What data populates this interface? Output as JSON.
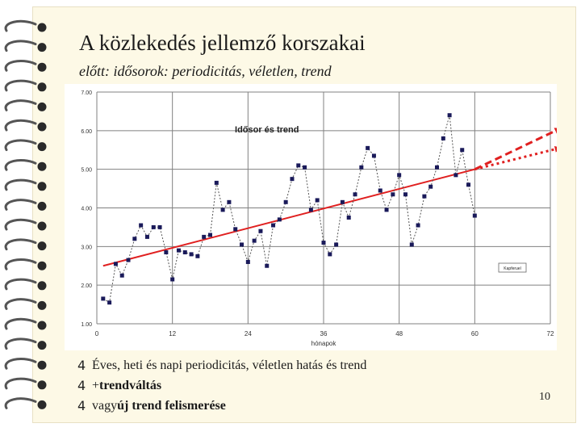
{
  "slide": {
    "title": "A közlekedés jellemző korszakai",
    "subtitle": "előtt: idősorok: periodicitás, véletlen, trend",
    "page_number": "10",
    "bullet_marker": "4",
    "bullets": [
      {
        "plain": "Éves, heti és napi periodicitás, véletlen hatás és trend",
        "bold": ""
      },
      {
        "plain": "+ ",
        "bold": "trendváltás"
      },
      {
        "plain": "vagy ",
        "bold": "új trend felismerése"
      }
    ]
  },
  "chart_data": {
    "type": "line",
    "title": "Idősor és trend",
    "xlabel": "hónapok",
    "ylabel": "",
    "legend_label": "Kapferuel",
    "xlim": [
      0,
      72
    ],
    "ylim": [
      1.0,
      7.0
    ],
    "x_ticks": [
      "0",
      "12",
      "24",
      "36",
      "48",
      "60",
      "72"
    ],
    "y_ticks": [
      "1.00",
      "2.00",
      "3.00",
      "4.00",
      "5.00",
      "6.00",
      "7.00"
    ],
    "grid": true,
    "colors": {
      "series": "#1a1a5a",
      "trend": "#e02020",
      "grid": "#808080"
    },
    "series": [
      {
        "x": [
          1,
          2,
          3,
          4,
          5,
          6,
          7,
          8,
          9,
          10,
          11,
          12,
          13,
          14,
          15,
          16,
          17,
          18,
          19,
          20,
          21,
          22,
          23,
          24,
          25,
          26,
          27,
          28,
          29,
          30,
          31,
          32,
          33,
          34,
          35,
          36,
          37,
          38,
          39,
          40,
          41,
          42,
          43,
          44,
          45,
          46,
          47,
          48,
          49,
          50,
          51,
          52,
          53,
          54,
          55,
          56,
          57,
          58,
          59,
          60
        ],
        "values": [
          1.65,
          1.55,
          2.55,
          2.25,
          2.65,
          3.2,
          3.55,
          3.25,
          3.5,
          3.5,
          2.85,
          2.15,
          2.9,
          2.85,
          2.8,
          2.75,
          3.25,
          3.3,
          4.65,
          3.95,
          4.15,
          3.45,
          3.05,
          2.6,
          3.15,
          3.4,
          2.5,
          3.55,
          3.7,
          4.15,
          4.75,
          5.1,
          5.05,
          3.95,
          4.2,
          3.1,
          2.8,
          3.05,
          4.15,
          3.75,
          4.35,
          5.05,
          5.55,
          5.35,
          4.45,
          3.95,
          4.35,
          4.85,
          4.35,
          3.05,
          3.55,
          4.3,
          4.55,
          5.05,
          5.8,
          6.4,
          4.85,
          5.5,
          4.6,
          3.8
        ]
      }
    ],
    "trend": {
      "x": [
        1,
        60
      ],
      "values": [
        2.5,
        5.0
      ]
    },
    "trend_change_projection": {
      "x": [
        60,
        74
      ],
      "values": [
        5.0,
        6.05
      ]
    },
    "new_trend_projection": {
      "x": [
        60,
        74
      ],
      "values": [
        5.0,
        5.55
      ]
    }
  }
}
